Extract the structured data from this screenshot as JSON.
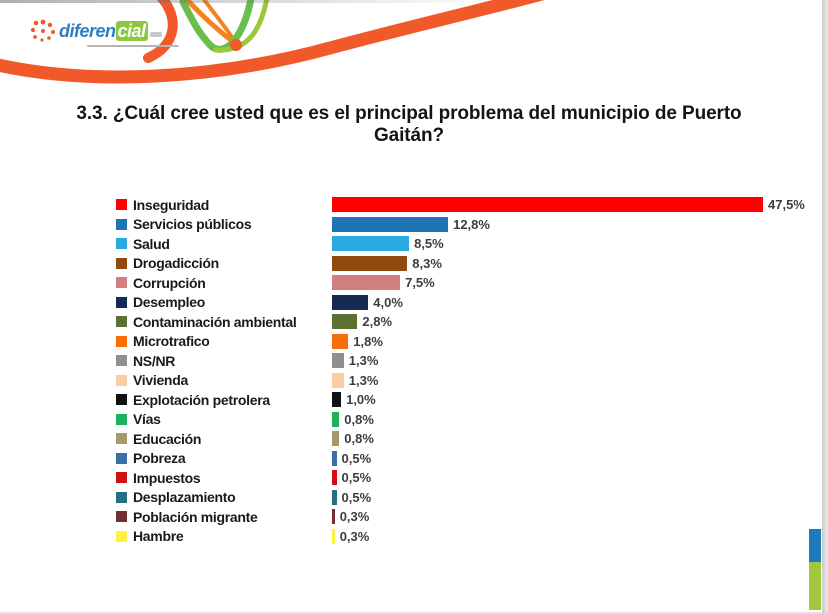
{
  "logo": {
    "text_main": "diferen",
    "text_accent": "cial"
  },
  "chart_data": {
    "type": "bar",
    "orientation": "horizontal",
    "title": "3.3. ¿Cuál cree usted que es el principal problema del municipio de Puerto Gaitán?",
    "unit": "%",
    "xlim": [
      0,
      50
    ],
    "grid": false,
    "legend_position": "left",
    "categories": [
      "Inseguridad",
      "Servicios públicos",
      "Salud",
      "Drogadicción",
      "Corrupción",
      "Desempleo",
      "Contaminación ambiental",
      "Microtrafico",
      "NS/NR",
      "Vivienda",
      "Explotación petrolera",
      "Vías",
      "Educación",
      "Pobreza",
      "Impuestos",
      "Desplazamiento",
      "Población migrante",
      "Hambre"
    ],
    "values": [
      47.5,
      12.8,
      8.5,
      8.3,
      7.5,
      4.0,
      2.8,
      1.8,
      1.3,
      1.3,
      1.0,
      0.8,
      0.8,
      0.5,
      0.5,
      0.5,
      0.3,
      0.3
    ],
    "value_labels": [
      "47,5%",
      "12,8%",
      "8,5%",
      "8,3%",
      "7,5%",
      "4,0%",
      "2,8%",
      "1,8%",
      "1,3%",
      "1,3%",
      "1,0%",
      "0,8%",
      "0,8%",
      "0,5%",
      "0,5%",
      "0,5%",
      "0,3%",
      "0,3%"
    ],
    "colors": [
      "#FF0000",
      "#1F74B5",
      "#29ABE2",
      "#8F4A0E",
      "#D08080",
      "#152A52",
      "#5C7034",
      "#FA6E0A",
      "#8F8F8F",
      "#FACDA2",
      "#111111",
      "#19B35B",
      "#A69A68",
      "#3A6FA8",
      "#D11016",
      "#27707F",
      "#722E31",
      "#FEF13F"
    ]
  },
  "decor": {
    "accent_orange": "#F1592A",
    "accent_orange_light": "#F58220",
    "accent_green": "#6ABF4B",
    "accent_green_light": "#9ACA3C",
    "strip_blue": "#1E7AB9",
    "strip_green": "#A2C73D",
    "logo_blue": "#2E7FC1",
    "logo_green": "#8DC63F"
  }
}
